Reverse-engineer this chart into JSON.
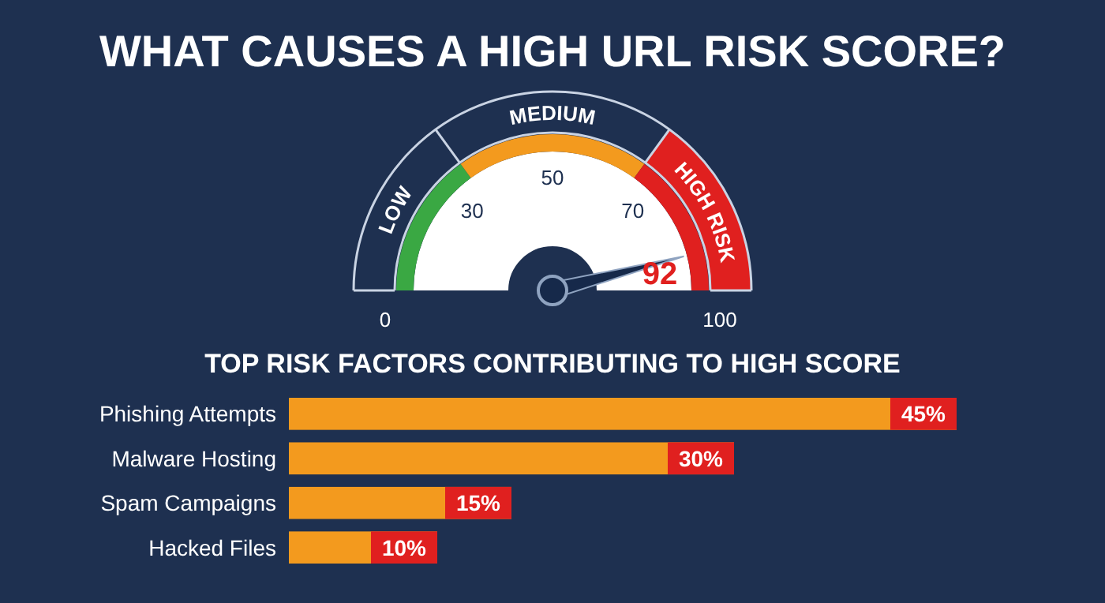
{
  "chart_data": [
    {
      "type": "donut",
      "title": "WHAT CAUSES A HIGH URL RISK SCORE?",
      "categories": [
        "LOW",
        "MEDIUM",
        "HIGH RISK"
      ],
      "values": [
        30,
        40,
        30
      ],
      "colors": [
        "#3aa843",
        "#f39a1e",
        "#e0201f"
      ],
      "needle": "HIGH RISK",
      "annotations": [
        "0",
        "30",
        "50",
        "70",
        "100",
        "92"
      ]
    },
    {
      "type": "bar",
      "orientation": "horizontal",
      "title": "TOP RISK FACTORS CONTRIBUTING TO HIGH SCORE",
      "categories": [
        "Phishing Attempts",
        "Malware Hosting",
        "Spam Campaigns",
        "Hacked Files"
      ],
      "values": [
        45,
        30,
        15,
        10
      ],
      "color": "#f39a1e",
      "value_labels": [
        "45%",
        "30%",
        "15%",
        "10%"
      ]
    }
  ]
}
